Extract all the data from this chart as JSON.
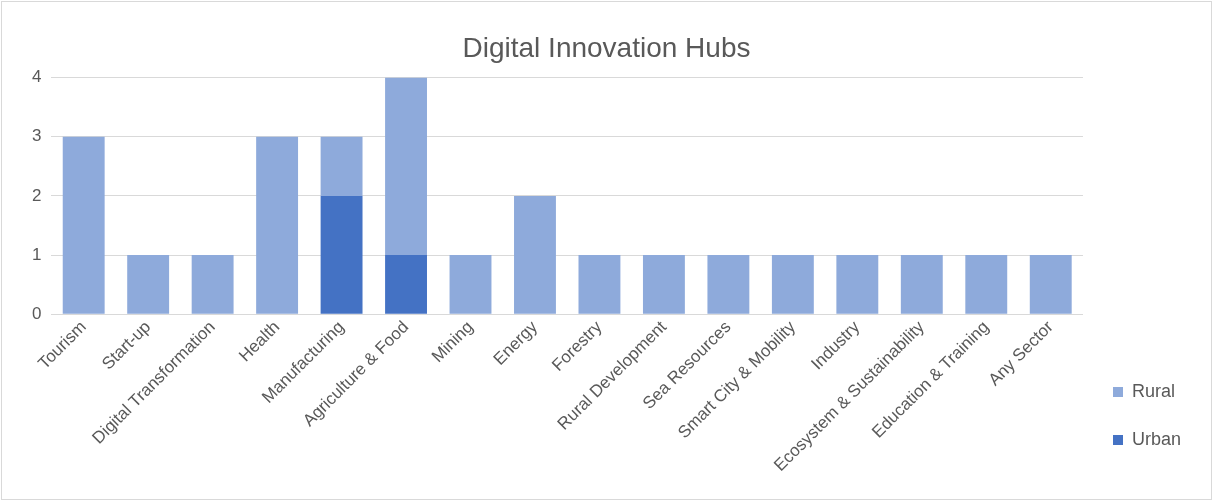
{
  "chart_data": {
    "type": "bar",
    "title": "Digital Innovation Hubs",
    "stacked": true,
    "categories": [
      "Tourism",
      "Start-up",
      "Digital Transformation",
      "Health",
      "Manufacturing",
      "Agriculture & Food",
      "Mining",
      "Energy",
      "Forestry",
      "Rural Development",
      "Sea Resources",
      "Smart City & Mobility",
      "Industry",
      "Ecosystem & Sustainability",
      "Education & Training",
      "Any Sector"
    ],
    "series": [
      {
        "name": "Urban",
        "color": "#4472c4",
        "values": [
          0,
          0,
          0,
          0,
          2,
          1,
          0,
          0,
          0,
          0,
          0,
          0,
          0,
          0,
          0,
          0
        ]
      },
      {
        "name": "Rural",
        "color": "#8eaadb",
        "values": [
          3,
          1,
          1,
          3,
          1,
          3,
          1,
          2,
          1,
          1,
          1,
          1,
          1,
          1,
          1,
          1
        ]
      }
    ],
    "ylim": [
      0,
      4
    ],
    "yticks": [
      0,
      1,
      2,
      3,
      4
    ],
    "grid": "y",
    "legend": "right"
  }
}
